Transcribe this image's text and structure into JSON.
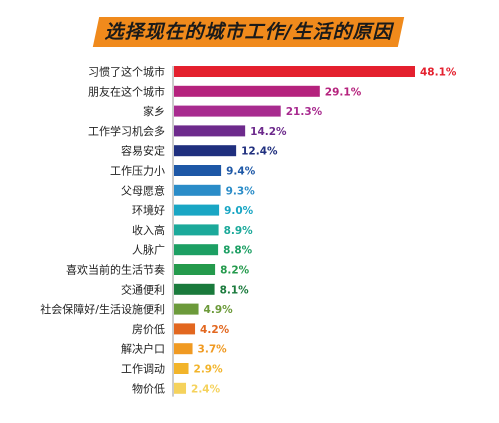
{
  "chart_data": {
    "type": "bar",
    "orientation": "horizontal",
    "title": "选择现在的城市工作/生活的原因",
    "xlabel": "",
    "ylabel": "",
    "xlim": [
      0,
      48.1
    ],
    "grid": false,
    "categories": [
      "习惯了这个城市",
      "朋友在这个城市",
      "家乡",
      "工作学习机会多",
      "容易安定",
      "工作压力小",
      "父母愿意",
      "环境好",
      "收入高",
      "人脉广",
      "喜欢当前的生活节奏",
      "交通便利",
      "社会保障好/生活设施便利",
      "房价低",
      "解决户口",
      "工作调动",
      "物价低"
    ],
    "values": [
      48.1,
      29.1,
      21.3,
      14.2,
      12.4,
      9.4,
      9.3,
      9.0,
      8.9,
      8.8,
      8.2,
      8.1,
      4.9,
      4.2,
      3.7,
      2.9,
      2.4
    ],
    "value_labels": [
      "48.1%",
      "29.1%",
      "21.3%",
      "14.2%",
      "12.4%",
      "9.4%",
      "9.3%",
      "9.0%",
      "8.9%",
      "8.8%",
      "8.2%",
      "8.1%",
      "4.9%",
      "4.2%",
      "3.7%",
      "2.9%",
      "2.4%"
    ],
    "colors": [
      "#e4202e",
      "#b5227d",
      "#a82b8f",
      "#6d2a8c",
      "#1f2f7e",
      "#1d57a6",
      "#2a8cc8",
      "#19a6c4",
      "#1ba99a",
      "#1c9f63",
      "#249a4c",
      "#1a7a3c",
      "#6c9a3a",
      "#e2671f",
      "#f09a22",
      "#f2b42a",
      "#f5d25c"
    ]
  }
}
